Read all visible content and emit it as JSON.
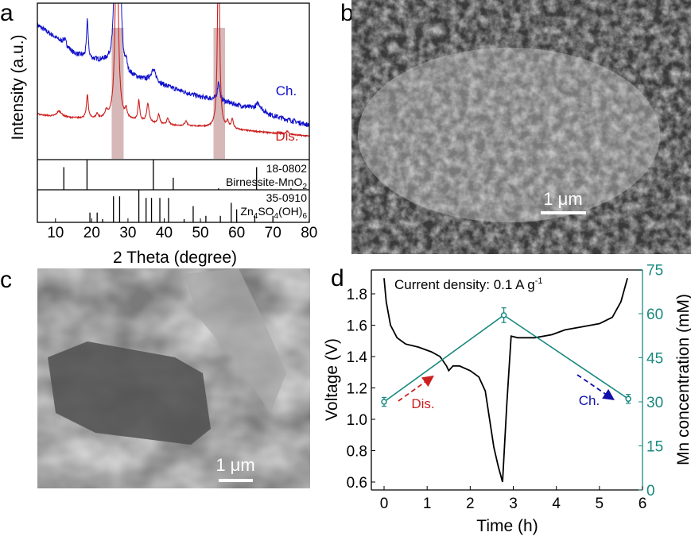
{
  "panel_labels": {
    "a": "a",
    "b": "b",
    "c": "c",
    "d": "d"
  },
  "colors": {
    "charge": "#1010cc",
    "discharge": "#cc2020",
    "voltage": "#000000",
    "mn": "#1a8a80",
    "highlight": "#c9a0a0"
  },
  "sem_b": {
    "scale_bar_label": "1 μm"
  },
  "sem_c": {
    "scale_bar_label": "1 μm"
  },
  "chart_data": [
    {
      "type": "line",
      "panel": "a",
      "xlabel": "2 Theta (degree)",
      "ylabel": "Intensity (a.u.)",
      "xlim": [
        5,
        80
      ],
      "xticks": [
        "10",
        "20",
        "30",
        "40",
        "50",
        "60",
        "70",
        "80"
      ],
      "highlight_bands": [
        [
          25.5,
          28.8
        ],
        [
          53.6,
          56.8
        ]
      ],
      "series": [
        {
          "name": "Ch.",
          "color": "#1010cc",
          "baseline": [
            [
              5,
              86
            ],
            [
              10,
              78
            ],
            [
              12,
              74
            ],
            [
              15,
              68
            ],
            [
              20,
              64
            ],
            [
              25,
              62
            ],
            [
              30,
              54
            ],
            [
              35,
              50
            ],
            [
              40,
              47
            ],
            [
              50,
              40
            ],
            [
              55,
              38
            ],
            [
              60,
              35
            ],
            [
              66,
              32
            ],
            [
              70,
              28
            ],
            [
              80,
              22
            ]
          ],
          "peaks": [
            [
              12.5,
              4,
              0.6
            ],
            [
              18.8,
              25,
              0.25
            ],
            [
              26.6,
              140,
              0.35
            ],
            [
              27.7,
              140,
              0.3
            ],
            [
              29.5,
              6,
              0.3
            ],
            [
              37,
              8,
              1.0
            ],
            [
              55,
              12,
              0.35
            ],
            [
              66,
              4,
              0.8
            ]
          ]
        },
        {
          "name": "Dis.",
          "color": "#cc2020",
          "baseline": [
            [
              5,
              29
            ],
            [
              10,
              27
            ],
            [
              20,
              26
            ],
            [
              30,
              25
            ],
            [
              40,
              22
            ],
            [
              50,
              21
            ],
            [
              60,
              19
            ],
            [
              70,
              17
            ],
            [
              80,
              15
            ]
          ],
          "peaks": [
            [
              11,
              4,
              0.9
            ],
            [
              18.8,
              15,
              0.3
            ],
            [
              21.5,
              3,
              0.3
            ],
            [
              24,
              4,
              0.4
            ],
            [
              26.9,
              140,
              0.45
            ],
            [
              29.5,
              5,
              0.3
            ],
            [
              33,
              13,
              0.3
            ],
            [
              35.5,
              12,
              0.4
            ],
            [
              38.5,
              6,
              0.35
            ],
            [
              41,
              4,
              0.4
            ],
            [
              46,
              3,
              0.4
            ],
            [
              55,
              140,
              0.3
            ],
            [
              57.5,
              4,
              0.3
            ],
            [
              58.8,
              6,
              0.35
            ],
            [
              74,
              2,
              0.4
            ]
          ]
        }
      ],
      "references": [
        {
          "code": "18-0802",
          "name_parts": [
            "Birnessite-MnO",
            "2"
          ],
          "lines": [
            [
              12.3,
              0.75
            ],
            [
              18.7,
              1.0
            ],
            [
              37,
              1.0
            ],
            [
              42.5,
              0.4
            ],
            [
              55,
              0.05
            ],
            [
              65.5,
              0.75
            ],
            [
              75,
              0.05
            ]
          ]
        },
        {
          "code": "35-0910",
          "name_parts": [
            "Zn",
            "4",
            "SO",
            "4",
            "(OH)",
            "6"
          ],
          "lines": [
            [
              19.5,
              0.3
            ],
            [
              21.5,
              0.3
            ],
            [
              23,
              0.1
            ],
            [
              26,
              0.8
            ],
            [
              27.7,
              0.8
            ],
            [
              33,
              1.0
            ],
            [
              35,
              0.75
            ],
            [
              36.5,
              0.75
            ],
            [
              38.8,
              0.75
            ],
            [
              41.2,
              0.75
            ],
            [
              45.5,
              0.1
            ],
            [
              48,
              0.5
            ],
            [
              51.5,
              0.2
            ],
            [
              55.5,
              0.2
            ],
            [
              58.5,
              0.6
            ],
            [
              60,
              0.4
            ],
            [
              65,
              0.2
            ],
            [
              70,
              0.2
            ]
          ]
        }
      ]
    },
    {
      "type": "line",
      "panel": "d",
      "annotation": "Current density: 0.1 A g",
      "annotation_sup": "-1",
      "xlabel": "Time (h)",
      "ylabel": "Voltage (V)",
      "y2label": "Mn concentration (mM)",
      "xlim": [
        0,
        6
      ],
      "ylim": [
        0.55,
        1.95
      ],
      "y2lim": [
        0,
        75
      ],
      "xticks": [
        "0",
        "1",
        "2",
        "3",
        "4",
        "5",
        "6"
      ],
      "yticks": [
        "0.6",
        "0.8",
        "1.0",
        "1.2",
        "1.4",
        "1.6",
        "1.8"
      ],
      "y2ticks": [
        "0",
        "15",
        "30",
        "45",
        "60",
        "75"
      ],
      "voltage": [
        [
          0,
          1.9
        ],
        [
          0.05,
          1.75
        ],
        [
          0.15,
          1.6
        ],
        [
          0.3,
          1.52
        ],
        [
          0.5,
          1.48
        ],
        [
          0.8,
          1.46
        ],
        [
          1.1,
          1.43
        ],
        [
          1.3,
          1.4
        ],
        [
          1.45,
          1.34
        ],
        [
          1.5,
          1.31
        ],
        [
          1.6,
          1.34
        ],
        [
          1.75,
          1.34
        ],
        [
          2.0,
          1.31
        ],
        [
          2.2,
          1.27
        ],
        [
          2.35,
          1.18
        ],
        [
          2.45,
          1.0
        ],
        [
          2.55,
          0.82
        ],
        [
          2.65,
          0.7
        ],
        [
          2.75,
          0.6
        ],
        [
          2.85,
          1.1
        ],
        [
          2.95,
          1.53
        ],
        [
          3.1,
          1.52
        ],
        [
          3.5,
          1.52
        ],
        [
          3.9,
          1.54
        ],
        [
          4.2,
          1.57
        ],
        [
          4.6,
          1.59
        ],
        [
          5.0,
          1.61
        ],
        [
          5.3,
          1.65
        ],
        [
          5.5,
          1.75
        ],
        [
          5.65,
          1.9
        ]
      ],
      "mn_concentration": [
        {
          "t": 0,
          "c": 30,
          "err": 1.5
        },
        {
          "t": 2.78,
          "c": 59.5,
          "err": 2.5
        },
        {
          "t": 5.67,
          "c": 31,
          "err": 1.5
        }
      ],
      "arrow_labels": {
        "discharge": "Dis.",
        "charge": "Ch."
      }
    }
  ]
}
